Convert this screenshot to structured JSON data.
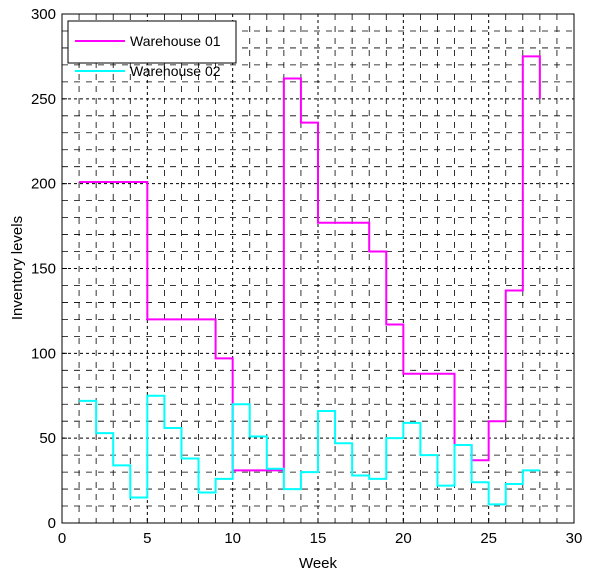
{
  "chart_data": {
    "type": "line",
    "step": true,
    "title": "",
    "xlabel": "Week",
    "ylabel": "Inventory levels",
    "xlim": [
      0,
      30
    ],
    "ylim": [
      0,
      300
    ],
    "xticks": [
      "0",
      "5",
      "10",
      "15",
      "20",
      "25",
      "30"
    ],
    "yticks": [
      "0",
      "50",
      "100",
      "150",
      "200",
      "250",
      "300"
    ],
    "grid": true,
    "legend_position": "top-left",
    "x": [
      1,
      2,
      3,
      4,
      5,
      6,
      7,
      8,
      9,
      10,
      11,
      12,
      13,
      14,
      15,
      16,
      17,
      18,
      19,
      20,
      21,
      22,
      23,
      24,
      25,
      26,
      27,
      28
    ],
    "series": [
      {
        "name": "Warehouse 01",
        "color": "#ff00ff",
        "values": [
          201,
          201,
          201,
          201,
          120,
          120,
          120,
          120,
          97,
          31,
          31,
          31,
          262,
          236,
          177,
          177,
          177,
          160,
          117,
          88,
          88,
          88,
          46,
          37,
          60,
          137,
          275,
          250
        ]
      },
      {
        "name": "Warehouse 02",
        "color": "#00ffff",
        "values": [
          72,
          53,
          34,
          15,
          75,
          56,
          38,
          18,
          26,
          70,
          51,
          32,
          20,
          30,
          66,
          47,
          28,
          26,
          50,
          59,
          40,
          22,
          46,
          24,
          11,
          23,
          31,
          31
        ]
      }
    ]
  }
}
